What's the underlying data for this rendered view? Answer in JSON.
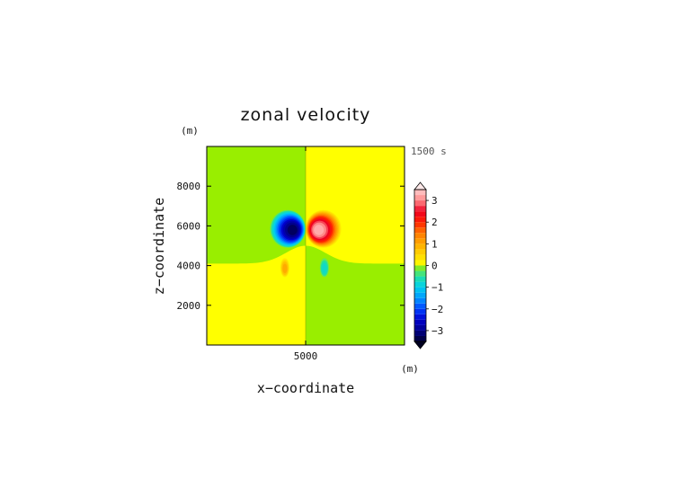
{
  "chart_data": {
    "type": "heatmap",
    "title": "zonal velocity",
    "xlabel": "x−coordinate",
    "ylabel": "z−coordinate",
    "x_unit": "(m)",
    "y_unit": "(m)",
    "time_label": "1500 s",
    "xlim": [
      0,
      10000
    ],
    "ylim": [
      0,
      10000
    ],
    "x_ticks": [
      5000
    ],
    "y_ticks": [
      2000,
      4000,
      6000,
      8000
    ],
    "colorbar": {
      "range": [
        -3.5,
        3.5
      ],
      "step": 0.25,
      "labeled_ticks": [
        -3,
        -2,
        -1,
        0,
        1,
        2,
        3
      ],
      "extend": "both"
    },
    "features": [
      {
        "kind": "vortex",
        "x": 4100,
        "z": 5850,
        "peak": -3.2
      },
      {
        "kind": "vortex",
        "x": 5900,
        "z": 5850,
        "peak": 3.2
      },
      {
        "kind": "blob",
        "x": 3950,
        "z": 3900,
        "peak": 1.0
      },
      {
        "kind": "blob",
        "x": 5950,
        "z": 3900,
        "peak": -0.8
      }
    ]
  },
  "colors": {
    "negative_background": "#99ee00",
    "positive_background": "#ffff00",
    "axis": "#000000"
  }
}
